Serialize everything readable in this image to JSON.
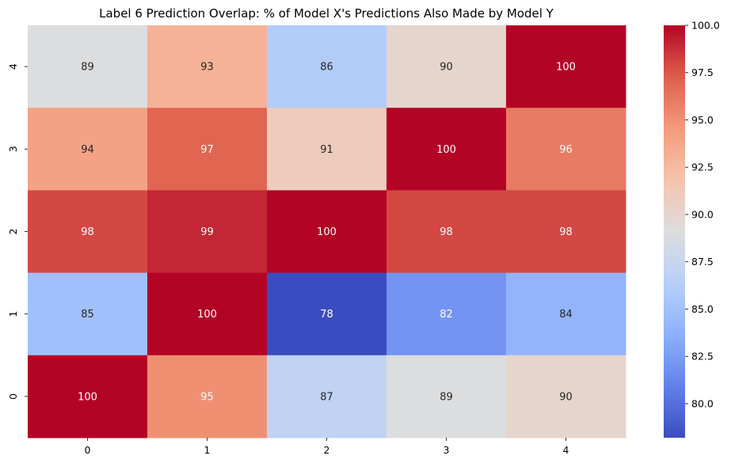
{
  "chart_data": {
    "type": "heatmap",
    "title": "Label 6 Prediction Overlap: % of Model X's Predictions Also Made by Model Y",
    "xlabel": "",
    "ylabel": "",
    "x_categories": [
      "0",
      "1",
      "2",
      "3",
      "4"
    ],
    "y_categories": [
      "4",
      "3",
      "2",
      "1",
      "0"
    ],
    "values": [
      [
        89,
        93,
        86,
        90,
        100
      ],
      [
        94,
        97,
        91,
        100,
        96
      ],
      [
        98,
        99,
        100,
        98,
        98
      ],
      [
        85,
        100,
        78,
        82,
        84
      ],
      [
        100,
        95,
        87,
        89,
        90
      ]
    ],
    "colormap": "coolwarm",
    "vmin": 78.2,
    "vmax": 100,
    "colorbar": {
      "ticks": [
        80.0,
        82.5,
        85.0,
        87.5,
        90.0,
        92.5,
        95.0,
        97.5,
        100.0
      ],
      "tick_labels": [
        "80.0",
        "82.5",
        "85.0",
        "87.5",
        "90.0",
        "92.5",
        "95.0",
        "97.5",
        "100.0"
      ]
    },
    "grid": false,
    "legend": "colorbar-right"
  }
}
